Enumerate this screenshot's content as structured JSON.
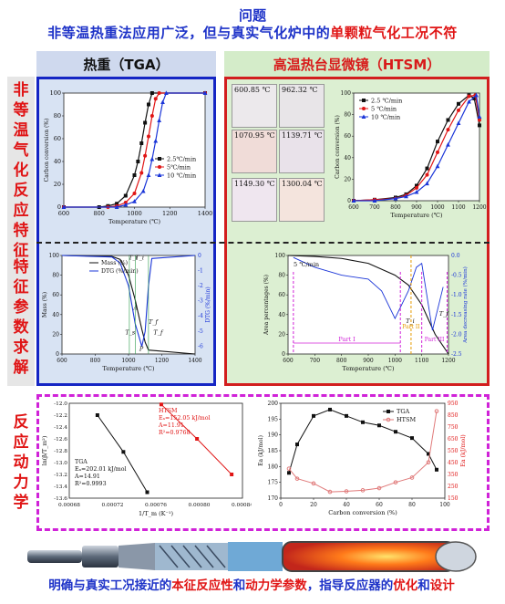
{
  "header": {
    "title": "问题",
    "subtitle_pre": "非等温热重法应用广泛，但与真实气化炉中的",
    "subtitle_hl": "单颗粒气化工况不符"
  },
  "sections": {
    "tga": "热重（TGA）",
    "htsm": "高温热台显微镜（HTSM）"
  },
  "side_labels": {
    "s1": [
      "非",
      "等",
      "温",
      "气",
      "化",
      "反",
      "应",
      "特",
      "征"
    ],
    "s2": [
      "特",
      "征",
      "参",
      "数",
      "求",
      "解"
    ],
    "s3": [
      "反",
      "应",
      "动",
      "力",
      "学"
    ]
  },
  "photos": [
    {
      "temp": "600.85 ℃",
      "bg": "#ece9ec"
    },
    {
      "temp": "962.32 ℃",
      "bg": "#e8e5e8"
    },
    {
      "temp": "1070.95 ℃",
      "bg": "#f0dcd8"
    },
    {
      "temp": "1139.71 ℃",
      "bg": "#e9e2ea"
    },
    {
      "temp": "1149.30 ℃",
      "bg": "#efe6ef"
    },
    {
      "temp": "1300.04 ℃",
      "bg": "#f4e4dd"
    }
  ],
  "colors": {
    "s1": "#111111",
    "s2": "#e01515",
    "s3": "#1a35d8"
  },
  "chart_data": [
    {
      "type": "line",
      "id": "tga_conversion",
      "xlabel": "Temperature (℃)",
      "ylabel": "Carbon conversion (%)",
      "xlim": [
        600,
        1400
      ],
      "ylim": [
        0,
        100
      ],
      "xticks": [
        "600",
        "800",
        "1000",
        "1200",
        "1400"
      ],
      "yticks": [
        "0",
        "20",
        "40",
        "60",
        "80",
        "100"
      ],
      "series": [
        {
          "name": "2.5℃/min",
          "x": [
            600,
            800,
            850,
            900,
            950,
            1000,
            1020,
            1040,
            1060,
            1080,
            1100,
            1400
          ],
          "values": [
            0,
            0,
            1,
            3,
            10,
            28,
            40,
            56,
            74,
            90,
            100,
            100
          ]
        },
        {
          "name": "5℃/min",
          "x": [
            600,
            850,
            900,
            950,
            1000,
            1040,
            1060,
            1080,
            1100,
            1120,
            1140,
            1400
          ],
          "values": [
            0,
            0,
            1,
            4,
            12,
            30,
            45,
            62,
            80,
            95,
            100,
            100
          ]
        },
        {
          "name": "10 ℃/min",
          "x": [
            600,
            900,
            950,
            1000,
            1050,
            1080,
            1100,
            1120,
            1140,
            1160,
            1180,
            1400
          ],
          "values": [
            0,
            0,
            2,
            5,
            14,
            28,
            42,
            58,
            76,
            92,
            100,
            100
          ]
        }
      ]
    },
    {
      "type": "line",
      "id": "htsm_conversion",
      "xlabel": "Temperature (℃)",
      "ylabel": "Carbon conversion (%)",
      "xlim": [
        600,
        1200
      ],
      "ylim": [
        0,
        100
      ],
      "xticks": [
        "600",
        "700",
        "800",
        "900",
        "1000",
        "1100",
        "1200"
      ],
      "yticks": [
        "0",
        "20",
        "40",
        "60",
        "80",
        "100"
      ],
      "series": [
        {
          "name": "2.5 ℃/min",
          "x": [
            600,
            700,
            800,
            850,
            900,
            950,
            1000,
            1050,
            1100,
            1150,
            1175,
            1200
          ],
          "values": [
            0,
            1,
            3,
            6,
            14,
            30,
            55,
            75,
            90,
            98,
            95,
            70
          ]
        },
        {
          "name": "5 ℃/min",
          "x": [
            600,
            700,
            800,
            850,
            900,
            950,
            1000,
            1050,
            1100,
            1150,
            1180,
            1200
          ],
          "values": [
            0,
            1,
            2,
            5,
            12,
            24,
            45,
            66,
            84,
            97,
            98,
            75
          ]
        },
        {
          "name": "10 ℃/min",
          "x": [
            600,
            700,
            800,
            850,
            900,
            950,
            1000,
            1050,
            1100,
            1150,
            1185,
            1200
          ],
          "values": [
            0,
            0,
            2,
            4,
            8,
            16,
            32,
            52,
            72,
            92,
            98,
            78
          ]
        }
      ]
    },
    {
      "type": "line",
      "id": "tga_param",
      "xlabel": "Temperature (℃)",
      "ylabel": "Mass (%)",
      "y2label": "DTG (%/min)",
      "xlim": [
        600,
        1400
      ],
      "ylim": [
        0,
        100
      ],
      "xticks": [
        "600",
        "800",
        "1000",
        "1200",
        "1400"
      ],
      "yticks": [
        "0",
        "20",
        "40",
        "60",
        "80",
        "100"
      ],
      "y2ticks": [
        "0",
        "-1",
        "-2",
        "-3",
        "-4",
        "-5",
        "-6"
      ],
      "annotations": [
        "T_i",
        "T_i",
        "A",
        "T_s",
        "P",
        "T_f",
        "T_f"
      ],
      "series": [
        {
          "name": "Mass (%)",
          "x": [
            600,
            900,
            950,
            1000,
            1040,
            1080,
            1100,
            1120,
            1400
          ],
          "values": [
            100,
            99,
            96,
            80,
            55,
            25,
            12,
            4,
            0
          ]
        },
        {
          "name": "DTG (%/min)",
          "x": [
            600,
            900,
            950,
            1000,
            1040,
            1080,
            1100,
            1120,
            1140,
            1400
          ],
          "values": [
            0,
            -0.1,
            -0.5,
            -2,
            -4.5,
            -6,
            -5,
            -2,
            -0.2,
            0
          ]
        }
      ]
    },
    {
      "type": "line",
      "id": "htsm_param",
      "xlabel": "Temperature (℃)",
      "ylabel": "Area percentages (%)",
      "y2label": "Area decreasing rate (%/min)",
      "legend_text": "5 ℃/min",
      "xlim": [
        600,
        1200
      ],
      "ylim": [
        0,
        100
      ],
      "xticks": [
        "600",
        "700",
        "800",
        "900",
        "1000",
        "1100",
        "1200"
      ],
      "yticks": [
        "0",
        "20",
        "40",
        "60",
        "80",
        "100"
      ],
      "y2ticks": [
        "0.0",
        "-0.5",
        "-1.0",
        "-1.5",
        "-2.0",
        "-2.5"
      ],
      "annotations": [
        "Part I",
        "Part II",
        "Part III",
        "T_i",
        "T_f"
      ],
      "series": [
        {
          "name": "Area percentage",
          "x": [
            600,
            700,
            800,
            900,
            1000,
            1050,
            1100,
            1150,
            1200
          ],
          "values": [
            100,
            99,
            97,
            92,
            80,
            70,
            50,
            20,
            0
          ]
        },
        {
          "name": "Area decreasing rate",
          "x": [
            620,
            700,
            800,
            900,
            950,
            1000,
            1050,
            1080,
            1100,
            1140,
            1180
          ],
          "values": [
            -0.05,
            -0.3,
            -0.5,
            -0.6,
            -0.9,
            -1.6,
            -0.9,
            -0.3,
            -0.2,
            -1.9,
            -0.8
          ]
        }
      ]
    },
    {
      "type": "scatter",
      "id": "arrhenius",
      "xlabel": "1/T_m (K⁻¹)",
      "ylabel": "ln(β/T_m²)",
      "xlim": [
        0.00068,
        0.00084
      ],
      "ylim": [
        -13.6,
        -12.0
      ],
      "xticks": [
        "0.00068",
        "0.00072",
        "0.00076",
        "0.00080",
        "0.00084"
      ],
      "yticks": [
        "-12.0",
        "-12.2",
        "-12.4",
        "-12.6",
        "-12.8",
        "-13.0",
        "-13.2",
        "-13.4",
        "-13.6"
      ],
      "annotations": {
        "htsm": [
          "HTSM",
          "Eₐ=152.05 kJ/mol",
          "A=11.91",
          "R²=0.9768"
        ],
        "tga": [
          "TGA",
          "Eₐ=202.01 kJ/mol",
          "A=14.91",
          "R²=0.9993"
        ]
      },
      "series": [
        {
          "name": "TGA",
          "x": [
            0.000706,
            0.00073,
            0.000752
          ],
          "values": [
            -12.2,
            -12.82,
            -13.5
          ]
        },
        {
          "name": "HTSM",
          "x": [
            0.000765,
            0.000798,
            0.00083
          ],
          "values": [
            -12.02,
            -12.6,
            -13.2
          ]
        }
      ]
    },
    {
      "type": "line",
      "id": "ea_conversion",
      "xlabel": "Carbon conversion (%)",
      "ylabel": "Ea (kJ/mol)",
      "y2label": "Ea (kJ/mol)",
      "xlim": [
        0,
        100
      ],
      "ylim": [
        170,
        200
      ],
      "y2lim": [
        100,
        1000
      ],
      "xticks": [
        "0",
        "20",
        "40",
        "60",
        "80",
        "100"
      ],
      "yticks": [
        "170",
        "175",
        "180",
        "185",
        "190",
        "195",
        "200"
      ],
      "y2ticks": [
        "150",
        "250",
        "350",
        "450",
        "550",
        "650",
        "750",
        "850",
        "950"
      ],
      "series": [
        {
          "name": "TGA",
          "x": [
            5,
            10,
            20,
            30,
            40,
            50,
            60,
            70,
            80,
            90,
            95
          ],
          "values": [
            178,
            187,
            196,
            198,
            196,
            194,
            193,
            191,
            189,
            184,
            179
          ]
        },
        {
          "name": "HTSM",
          "x": [
            5,
            10,
            20,
            30,
            40,
            50,
            60,
            70,
            80,
            90,
            95
          ],
          "values": [
            380,
            285,
            240,
            160,
            165,
            175,
            195,
            250,
            295,
            440,
            925
          ]
        }
      ]
    }
  ],
  "footer": {
    "pre": "明确与真实工况接近的",
    "hl1": "本征反应性",
    "mid1": "和",
    "hl2": "动力学参数",
    "mid2": "，指导反应器的",
    "hl3": "优化",
    "mid3": "和",
    "hl4": "设计"
  }
}
